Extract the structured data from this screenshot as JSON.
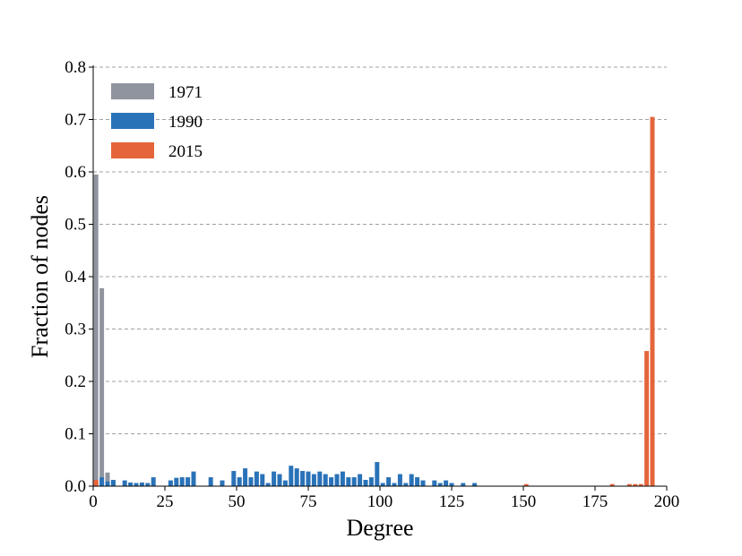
{
  "chart_data": {
    "type": "bar",
    "xlabel": "Degree",
    "ylabel": "Fraction of nodes",
    "xlim": [
      0,
      200
    ],
    "ylim": [
      0,
      0.8
    ],
    "xticks": [
      0,
      25,
      50,
      75,
      100,
      125,
      150,
      175,
      200
    ],
    "xtick_labels": [
      "0",
      "25",
      "50",
      "75",
      "100",
      "125",
      "150",
      "175",
      "200"
    ],
    "yticks": [
      0,
      0.1,
      0.2,
      0.3,
      0.4,
      0.5,
      0.6,
      0.7,
      0.8
    ],
    "ytick_labels": [
      "0.0",
      "0.1",
      "0.2",
      "0.3",
      "0.4",
      "0.5",
      "0.6",
      "0.7",
      "0.8"
    ],
    "grid": "horizontal dashed",
    "legend_position": "top-left",
    "series": [
      {
        "name": "1971",
        "color": "#8f949e",
        "points": [
          [
            1,
            0.595
          ],
          [
            3,
            0.378
          ],
          [
            5,
            0.026
          ],
          [
            7,
            0.009
          ]
        ]
      },
      {
        "name": "1990",
        "color": "#2a72b8",
        "points": [
          [
            3,
            0.017
          ],
          [
            5,
            0.009
          ],
          [
            7,
            0.012
          ],
          [
            11,
            0.011
          ],
          [
            13,
            0.007
          ],
          [
            15,
            0.006
          ],
          [
            17,
            0.007
          ],
          [
            19,
            0.006
          ],
          [
            21,
            0.017
          ],
          [
            27,
            0.011
          ],
          [
            29,
            0.016
          ],
          [
            31,
            0.017
          ],
          [
            33,
            0.017
          ],
          [
            35,
            0.028
          ],
          [
            41,
            0.017
          ],
          [
            45,
            0.011
          ],
          [
            49,
            0.029
          ],
          [
            51,
            0.017
          ],
          [
            53,
            0.034
          ],
          [
            55,
            0.017
          ],
          [
            57,
            0.028
          ],
          [
            59,
            0.023
          ],
          [
            61,
            0.006
          ],
          [
            63,
            0.028
          ],
          [
            65,
            0.023
          ],
          [
            67,
            0.011
          ],
          [
            69,
            0.039
          ],
          [
            71,
            0.034
          ],
          [
            73,
            0.029
          ],
          [
            75,
            0.028
          ],
          [
            77,
            0.023
          ],
          [
            79,
            0.028
          ],
          [
            81,
            0.023
          ],
          [
            83,
            0.017
          ],
          [
            85,
            0.023
          ],
          [
            87,
            0.028
          ],
          [
            89,
            0.017
          ],
          [
            91,
            0.017
          ],
          [
            93,
            0.023
          ],
          [
            95,
            0.012
          ],
          [
            97,
            0.017
          ],
          [
            99,
            0.046
          ],
          [
            101,
            0.006
          ],
          [
            103,
            0.017
          ],
          [
            105,
            0.006
          ],
          [
            107,
            0.023
          ],
          [
            109,
            0.006
          ],
          [
            111,
            0.023
          ],
          [
            113,
            0.017
          ],
          [
            115,
            0.011
          ],
          [
            119,
            0.011
          ],
          [
            121,
            0.006
          ],
          [
            123,
            0.011
          ],
          [
            125,
            0.006
          ],
          [
            129,
            0.006
          ],
          [
            133,
            0.006
          ]
        ]
      },
      {
        "name": "2015",
        "color": "#e4653a",
        "points": [
          [
            1,
            0.012
          ],
          [
            151,
            0.004
          ],
          [
            181,
            0.004
          ],
          [
            187,
            0.004
          ],
          [
            189,
            0.004
          ],
          [
            191,
            0.004
          ],
          [
            193,
            0.258
          ],
          [
            195,
            0.705
          ]
        ]
      }
    ]
  }
}
